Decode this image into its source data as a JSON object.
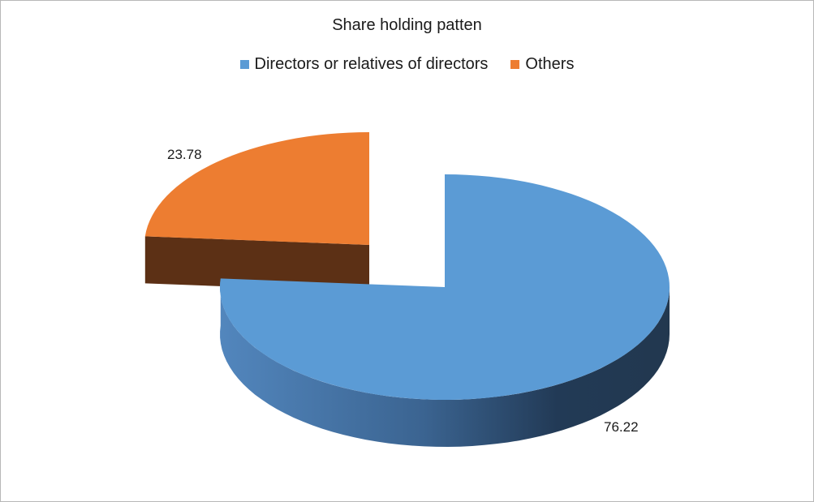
{
  "chart_data": {
    "type": "pie",
    "title": "Share holding patten",
    "legend_position": "top",
    "categories": [
      "Directors or relatives of directors",
      "Others"
    ],
    "values": [
      76.22,
      23.78
    ],
    "data_labels": [
      "76.22",
      "23.78"
    ],
    "colors": [
      "#5b9bd5",
      "#ed7d31"
    ],
    "exploded": true,
    "three_d": true
  }
}
